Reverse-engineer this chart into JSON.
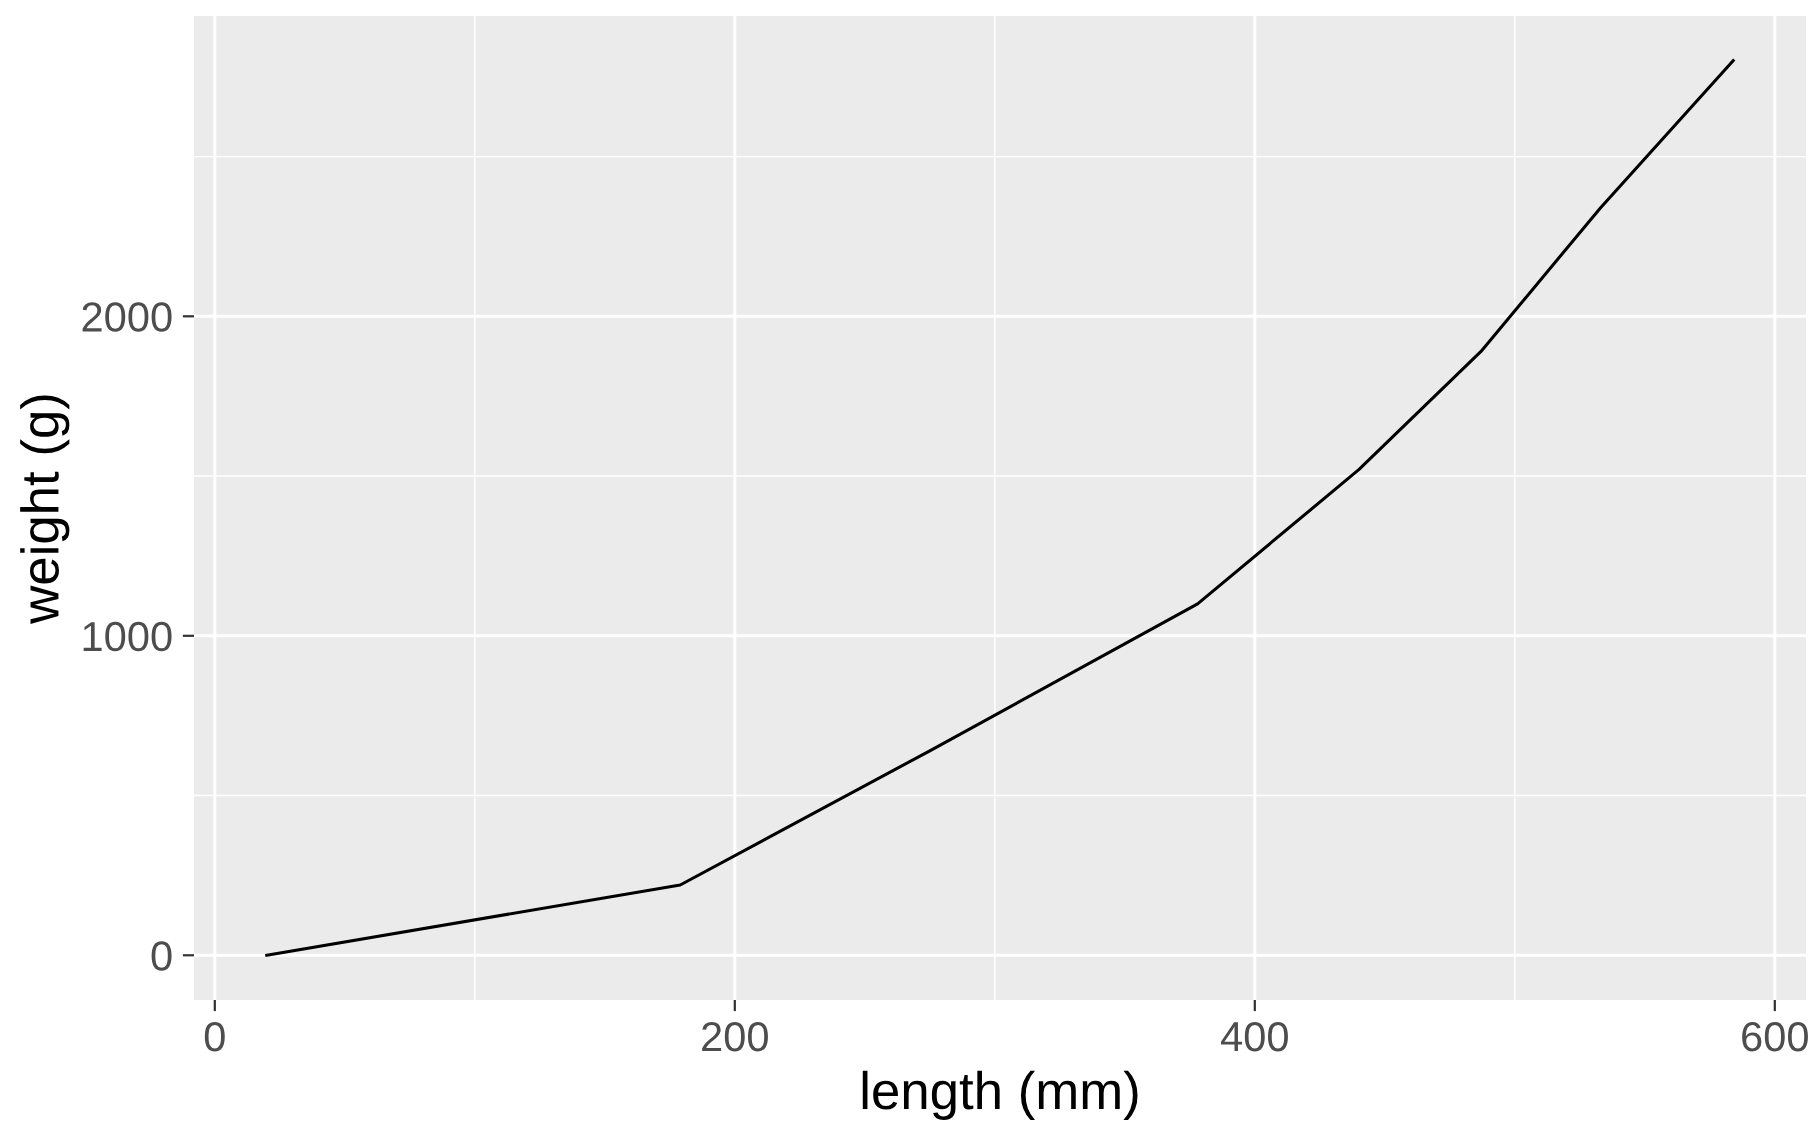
{
  "chart_data": {
    "type": "line",
    "xlabel": "length (mm)",
    "ylabel": "weight (g)",
    "x": [
      20,
      179,
      275,
      378,
      440,
      487,
      533,
      584
    ],
    "series": [
      {
        "color": "#000000",
        "values": [
          0,
          220,
          640,
          1100,
          1520,
          1890,
          2340,
          2800
        ]
      }
    ],
    "xlim": [
      -8,
      612
    ],
    "ylim": [
      -140,
      2940
    ],
    "xticks": [
      0,
      200,
      400,
      600
    ],
    "yticks": [
      0,
      1000,
      2000
    ],
    "grid": true,
    "legend": false,
    "marker": "none",
    "line_style": "solid"
  }
}
